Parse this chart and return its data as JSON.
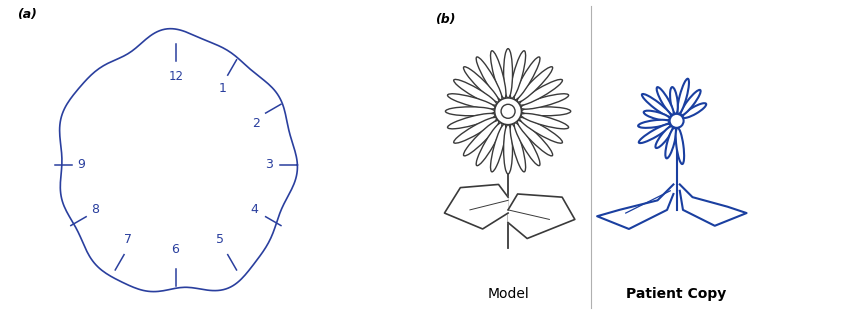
{
  "fig_width": 8.5,
  "fig_height": 3.18,
  "dpi": 100,
  "background_color": "#ffffff",
  "label_a": "(a)",
  "label_b": "(b)",
  "clock_color": "#2a3f9e",
  "flower_model_color": "#3a3a3a",
  "flower_patient_color": "#1a3fa0",
  "model_label": "Model",
  "patient_label": "Patient Copy",
  "model_label_fontsize": 10,
  "patient_label_fontsize": 10,
  "num_angles": {
    "12": 90,
    "1": 60,
    "2": 30,
    "3": 0,
    "4": -30,
    "5": -60,
    "6": -90,
    "7": -120,
    "8": -150,
    "9": 180
  }
}
